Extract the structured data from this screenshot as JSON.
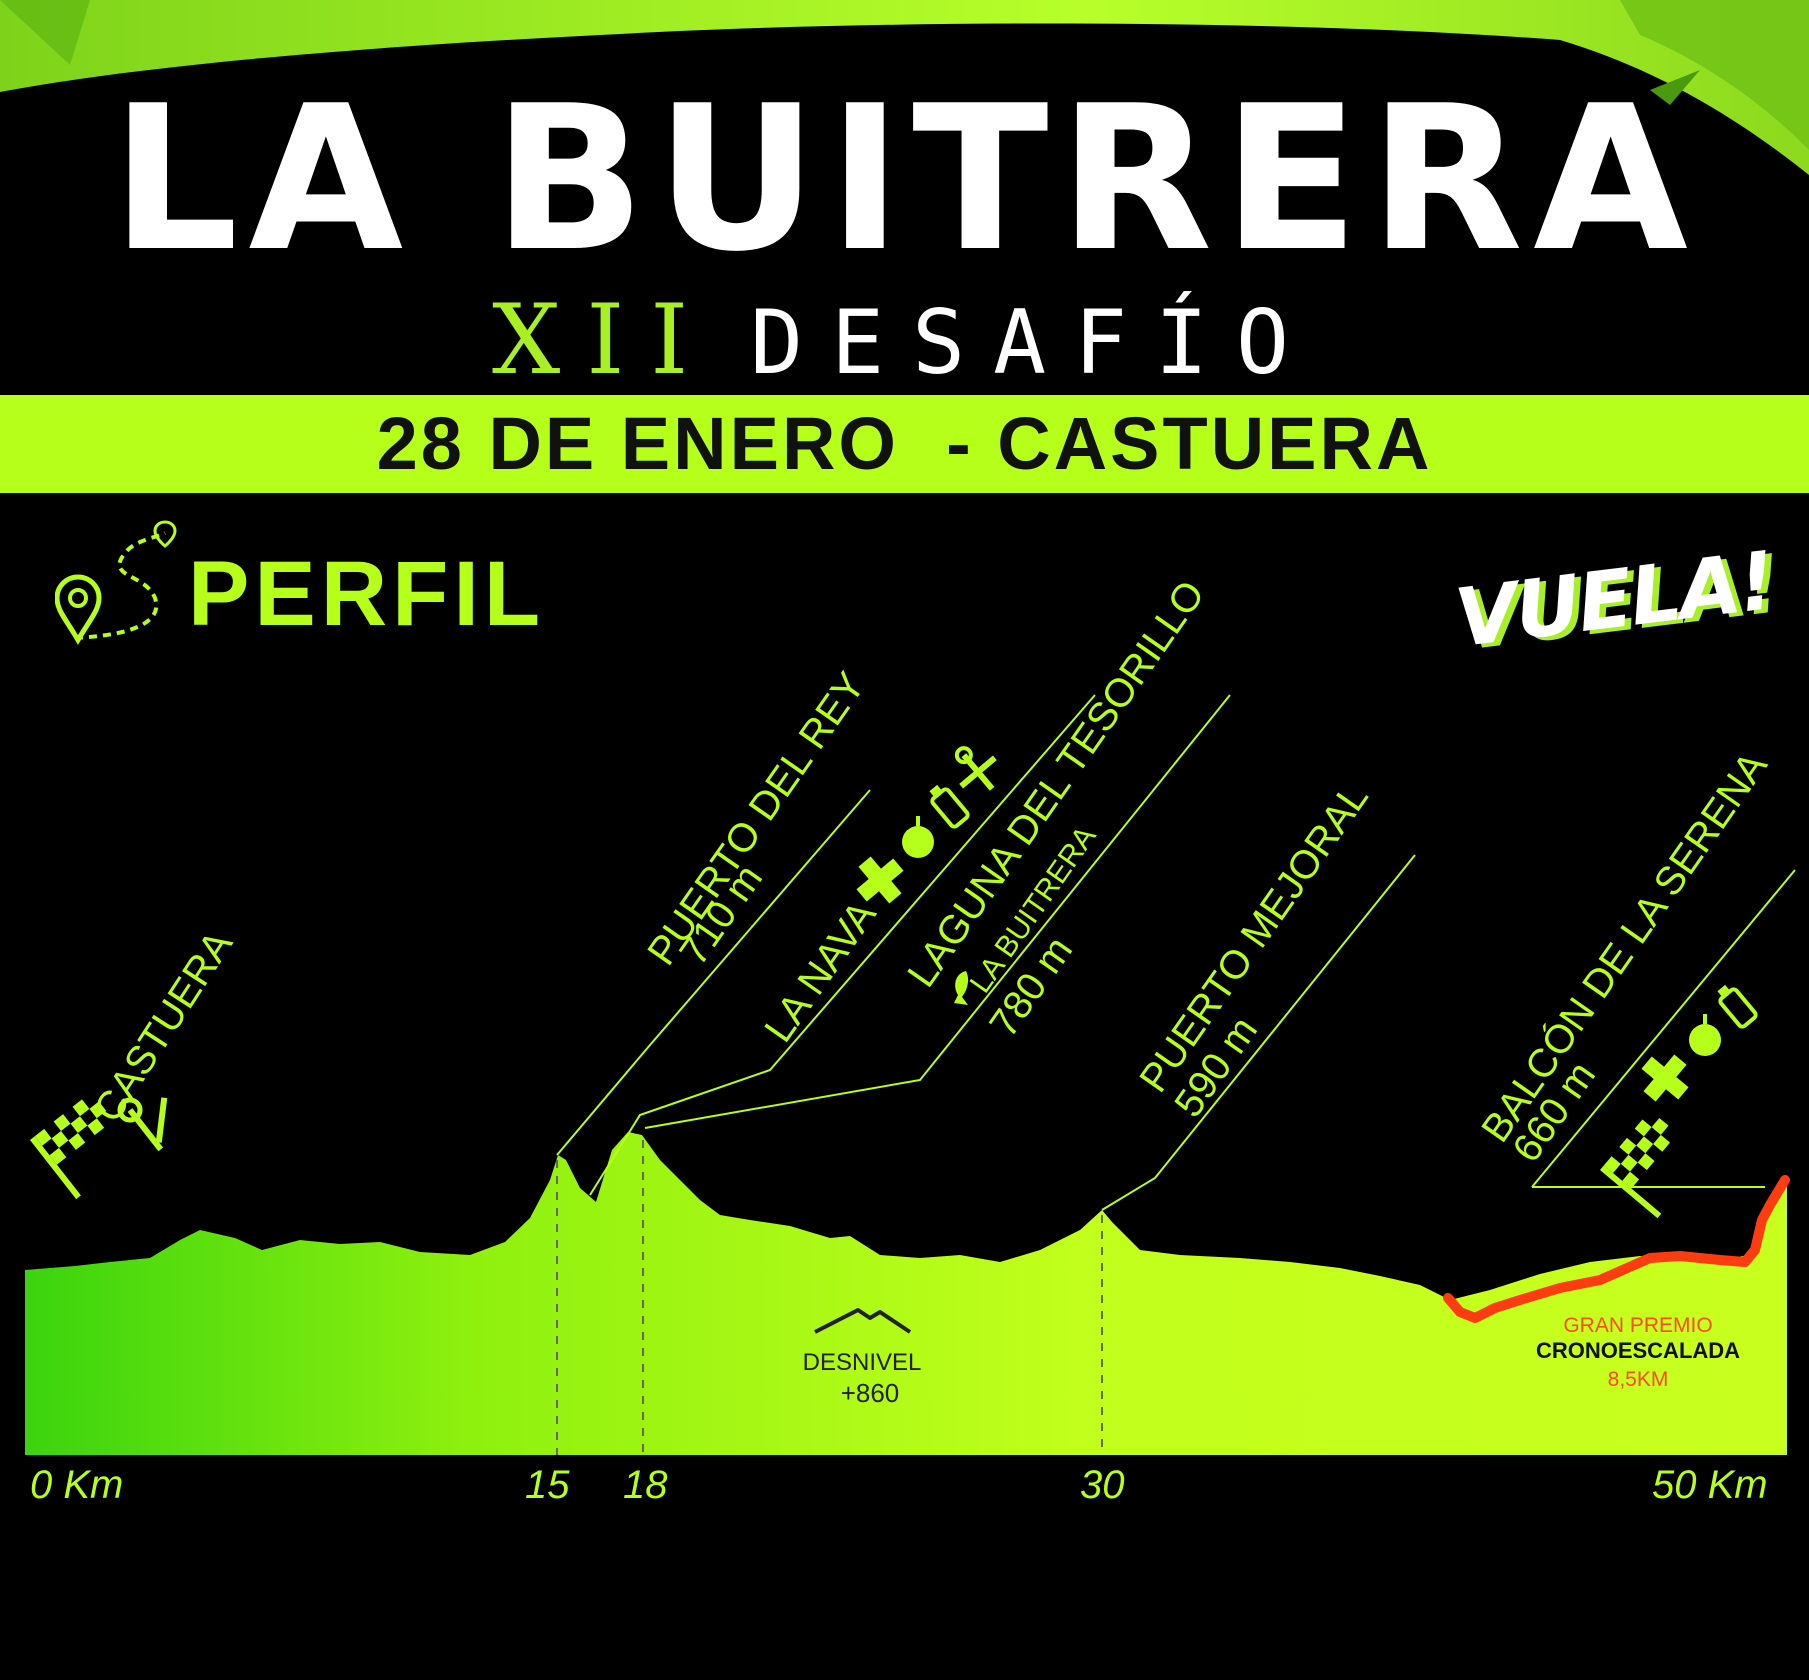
{
  "title": "LA BUITRERA",
  "subtitle": {
    "roman": "XII",
    "word": "DESAFÍO"
  },
  "date_band": "28 DE ENERO  - CASTUERA",
  "section_label": "PERFIL",
  "brand": "VUELA!",
  "colors": {
    "accent": "#b6ff1a",
    "background": "#000000",
    "gradient_start": "#3bd40e",
    "gradient_end": "#c8ff1e",
    "climb": "#ff3b12"
  },
  "waypoints": [
    {
      "name": "CASTUERA",
      "altitude": ""
    },
    {
      "name": "PUERTO DEL REY",
      "altitude": "710 m"
    },
    {
      "name": "LA NAVA",
      "altitude": ""
    },
    {
      "name": "LAGUNA DEL TESORILLO",
      "extra": "LA BUITRERA",
      "altitude": "780 m"
    },
    {
      "name": "PUERTO MEJORAL",
      "altitude": "590 m"
    },
    {
      "name": "BALCÓN DE LA SERENA",
      "altitude": "660 m"
    }
  ],
  "desnivel": {
    "label": "DESNIVEL",
    "value": "+860"
  },
  "climb": {
    "line1": "GRAN PREMIO",
    "line2": "CRONOESCALADA",
    "line3": "8,5KM"
  },
  "km_labels": [
    "0 Km",
    "15",
    "18",
    "30",
    "50 Km"
  ],
  "icons": [
    "checkered-flag-icon",
    "tools-icon",
    "medical-cross-icon",
    "apple-icon",
    "bottle-icon",
    "vulture-icon",
    "mountain-icon",
    "map-pin-route-icon"
  ]
}
